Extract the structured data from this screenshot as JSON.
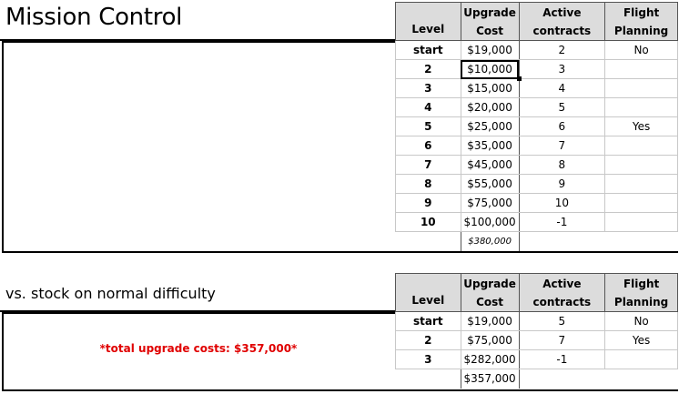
{
  "sections": [
    {
      "title": "Mission Control",
      "table": {
        "headers": [
          {
            "line1": "",
            "line2": "Level"
          },
          {
            "line1": "Upgrade",
            "line2": "Cost"
          },
          {
            "line1": "Active",
            "line2": "contracts"
          },
          {
            "line1": "Flight",
            "line2": "Planning"
          }
        ],
        "rows": [
          {
            "level": "start",
            "cost": "$19,000",
            "contracts": "2",
            "planning": "No"
          },
          {
            "level": "2",
            "cost": "$10,000",
            "contracts": "3",
            "planning": ""
          },
          {
            "level": "3",
            "cost": "$15,000",
            "contracts": "4",
            "planning": ""
          },
          {
            "level": "4",
            "cost": "$20,000",
            "contracts": "5",
            "planning": ""
          },
          {
            "level": "5",
            "cost": "$25,000",
            "contracts": "6",
            "planning": "Yes"
          },
          {
            "level": "6",
            "cost": "$35,000",
            "contracts": "7",
            "planning": ""
          },
          {
            "level": "7",
            "cost": "$45,000",
            "contracts": "8",
            "planning": ""
          },
          {
            "level": "8",
            "cost": "$55,000",
            "contracts": "9",
            "planning": ""
          },
          {
            "level": "9",
            "cost": "$75,000",
            "contracts": "10",
            "planning": ""
          },
          {
            "level": "10",
            "cost": "$100,000",
            "contracts": "-1",
            "planning": ""
          }
        ],
        "total": "$380,000"
      }
    },
    {
      "title": "vs. stock on normal difficulty",
      "note": "*total upgrade costs: $357,000*",
      "table": {
        "headers": [
          {
            "line1": "",
            "line2": "Level"
          },
          {
            "line1": "Upgrade",
            "line2": "Cost"
          },
          {
            "line1": "Active",
            "line2": "contracts"
          },
          {
            "line1": "Flight",
            "line2": "Planning"
          }
        ],
        "rows": [
          {
            "level": "start",
            "cost": "$19,000",
            "contracts": "5",
            "planning": "No"
          },
          {
            "level": "2",
            "cost": "$75,000",
            "contracts": "7",
            "planning": "Yes"
          },
          {
            "level": "3",
            "cost": "$282,000",
            "contracts": "-1",
            "planning": ""
          }
        ],
        "total": "$357,000"
      }
    }
  ],
  "selected_cell": {
    "section": 0,
    "row": 1,
    "column": "cost"
  },
  "colors": {
    "note": "#e00000",
    "header_bg": "#dcdcdc"
  }
}
